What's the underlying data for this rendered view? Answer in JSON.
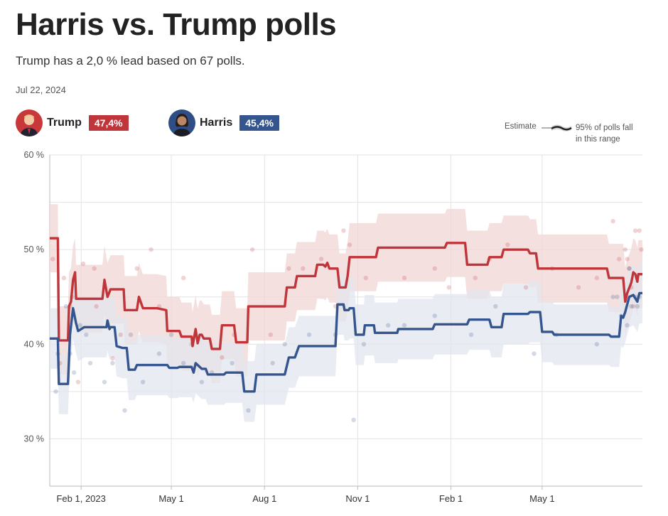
{
  "header": {
    "title": "Harris vs. Trump polls",
    "subtitle": "Trump has a 2,0 % lead based on 67 polls.",
    "date": "Jul 22, 2024"
  },
  "candidates": [
    {
      "name": "Trump",
      "value_label": "47,4%",
      "color": "#c0353a"
    },
    {
      "name": "Harris",
      "value_label": "45,4%",
      "color": "#34558e"
    }
  ],
  "legend": {
    "estimate": "Estimate",
    "range_line1": "95% of polls fall",
    "range_line2": "in this range"
  },
  "chart_data": {
    "type": "line",
    "title": "Harris vs. Trump polls",
    "x_start": "2023-01-01",
    "x_end": "2024-07-22",
    "x_tick_labels": [
      "Feb 1, 2023",
      "May 1",
      "Aug 1",
      "Nov 1",
      "Feb 1",
      "May 1"
    ],
    "x_tick_days": [
      31,
      120,
      212,
      304,
      396,
      486
    ],
    "y_tick_labels": [
      "60 %",
      "50 %",
      "40 %",
      "30 %"
    ],
    "y_ticks": [
      60,
      50,
      40,
      30
    ],
    "ylim": [
      25,
      60
    ],
    "series": [
      {
        "name": "Trump",
        "color": "#c0353a",
        "band_color": "#f2d6d6",
        "estimate": [
          [
            0,
            51.2
          ],
          [
            8,
            51.2
          ],
          [
            9,
            40.4
          ],
          [
            18,
            40.4
          ],
          [
            19,
            44
          ],
          [
            21,
            44.5
          ],
          [
            23,
            46.8
          ],
          [
            25,
            47.6
          ],
          [
            26,
            44.8
          ],
          [
            30,
            44.8
          ],
          [
            32,
            44.8
          ],
          [
            52,
            44.8
          ],
          [
            54,
            46.8
          ],
          [
            57,
            45
          ],
          [
            60,
            45.8
          ],
          [
            73,
            45.8
          ],
          [
            74,
            43.6
          ],
          [
            86,
            43.6
          ],
          [
            88,
            45
          ],
          [
            92,
            43.8
          ],
          [
            106,
            43.8
          ],
          [
            115,
            43.6
          ],
          [
            116,
            41.4
          ],
          [
            128,
            41.4
          ],
          [
            130,
            40.8
          ],
          [
            140,
            40.8
          ],
          [
            141,
            39.8
          ],
          [
            144,
            41.6
          ],
          [
            146,
            40.1
          ],
          [
            148,
            41
          ],
          [
            150,
            41
          ],
          [
            152,
            40.6
          ],
          [
            158,
            40.6
          ],
          [
            160,
            39.5
          ],
          [
            168,
            39.5
          ],
          [
            170,
            42
          ],
          [
            182,
            42
          ],
          [
            184,
            40.2
          ],
          [
            195,
            40.2
          ],
          [
            196,
            44
          ],
          [
            232,
            44
          ],
          [
            234,
            46
          ],
          [
            242,
            46
          ],
          [
            244,
            47.2
          ],
          [
            262,
            47.2
          ],
          [
            264,
            48.4
          ],
          [
            270,
            48.4
          ],
          [
            272,
            48.2
          ],
          [
            274,
            48.6
          ],
          [
            276,
            48
          ],
          [
            284,
            48
          ],
          [
            286,
            46
          ],
          [
            292,
            46
          ],
          [
            294,
            47.2
          ],
          [
            296,
            49.2
          ],
          [
            322,
            49.2
          ],
          [
            324,
            50.2
          ],
          [
            390,
            50.2
          ],
          [
            392,
            50.7
          ],
          [
            410,
            50.7
          ],
          [
            412,
            48.4
          ],
          [
            432,
            48.4
          ],
          [
            434,
            49.2
          ],
          [
            446,
            49.2
          ],
          [
            448,
            50
          ],
          [
            472,
            50
          ],
          [
            474,
            49.6
          ],
          [
            480,
            49.6
          ],
          [
            482,
            48
          ],
          [
            550,
            48
          ],
          [
            552,
            47
          ],
          [
            566,
            47
          ],
          [
            568,
            44.5
          ],
          [
            570,
            45.4
          ],
          [
            574,
            46.5
          ],
          [
            576,
            47.6
          ],
          [
            578,
            47.4
          ],
          [
            580,
            46.6
          ],
          [
            581,
            47.4
          ],
          [
            585,
            47.4
          ]
        ],
        "band_half_width": 3.6,
        "poll_dots": [
          [
            3,
            49
          ],
          [
            10,
            38
          ],
          [
            14,
            47
          ],
          [
            20,
            44
          ],
          [
            22,
            45
          ],
          [
            28,
            36
          ],
          [
            33,
            48.5
          ],
          [
            44,
            48
          ],
          [
            46,
            44
          ],
          [
            62,
            38.5
          ],
          [
            70,
            41
          ],
          [
            86,
            48
          ],
          [
            100,
            50
          ],
          [
            108,
            44
          ],
          [
            132,
            47
          ],
          [
            140,
            40
          ],
          [
            170,
            38.6
          ],
          [
            182,
            41
          ],
          [
            200,
            50
          ],
          [
            218,
            41
          ],
          [
            236,
            48
          ],
          [
            250,
            48
          ],
          [
            268,
            49
          ],
          [
            282,
            44
          ],
          [
            290,
            52
          ],
          [
            296,
            50.5
          ],
          [
            312,
            47
          ],
          [
            350,
            47
          ],
          [
            380,
            48
          ],
          [
            394,
            46
          ],
          [
            420,
            47
          ],
          [
            434,
            49
          ],
          [
            452,
            50.5
          ],
          [
            470,
            46
          ],
          [
            496,
            48
          ],
          [
            522,
            46
          ],
          [
            540,
            47
          ],
          [
            556,
            53
          ],
          [
            562,
            49
          ],
          [
            568,
            50
          ],
          [
            570,
            49
          ],
          [
            572,
            48
          ],
          [
            574,
            46
          ],
          [
            576,
            44
          ],
          [
            578,
            52
          ],
          [
            582,
            52
          ],
          [
            584,
            50
          ]
        ]
      },
      {
        "name": "Harris",
        "color": "#34558e",
        "band_color": "#e1e6ee",
        "estimate": [
          [
            0,
            40.6
          ],
          [
            8,
            40.6
          ],
          [
            9,
            35.8
          ],
          [
            18,
            35.8
          ],
          [
            20,
            41
          ],
          [
            23,
            43.8
          ],
          [
            26,
            42.2
          ],
          [
            28,
            41.4
          ],
          [
            34,
            41.8
          ],
          [
            56,
            41.8
          ],
          [
            57,
            42.5
          ],
          [
            59,
            41.6
          ],
          [
            60,
            41.8
          ],
          [
            64,
            41.8
          ],
          [
            66,
            39.8
          ],
          [
            72,
            39.6
          ],
          [
            76,
            39.6
          ],
          [
            78,
            37.3
          ],
          [
            84,
            37.3
          ],
          [
            86,
            37.8
          ],
          [
            116,
            37.8
          ],
          [
            118,
            37.5
          ],
          [
            126,
            37.5
          ],
          [
            128,
            37.6
          ],
          [
            140,
            37.6
          ],
          [
            142,
            37
          ],
          [
            144,
            38
          ],
          [
            150,
            37.4
          ],
          [
            154,
            37.4
          ],
          [
            156,
            36.8
          ],
          [
            172,
            36.8
          ],
          [
            174,
            37
          ],
          [
            190,
            37
          ],
          [
            192,
            35
          ],
          [
            202,
            35
          ],
          [
            204,
            36.8
          ],
          [
            232,
            36.8
          ],
          [
            236,
            38.6
          ],
          [
            242,
            38.6
          ],
          [
            246,
            39.8
          ],
          [
            282,
            39.8
          ],
          [
            284,
            44.2
          ],
          [
            290,
            44.2
          ],
          [
            291,
            43.6
          ],
          [
            295,
            43.6
          ],
          [
            296,
            43.8
          ],
          [
            300,
            43.8
          ],
          [
            302,
            41
          ],
          [
            310,
            41
          ],
          [
            311,
            42
          ],
          [
            320,
            42
          ],
          [
            321,
            41.2
          ],
          [
            343,
            41.2
          ],
          [
            344,
            41.6
          ],
          [
            378,
            41.6
          ],
          [
            380,
            42.1
          ],
          [
            412,
            42.1
          ],
          [
            414,
            42.6
          ],
          [
            434,
            42.6
          ],
          [
            436,
            41.8
          ],
          [
            446,
            41.8
          ],
          [
            448,
            43.2
          ],
          [
            472,
            43.2
          ],
          [
            474,
            43.4
          ],
          [
            484,
            43.4
          ],
          [
            486,
            41.3
          ],
          [
            496,
            41.3
          ],
          [
            498,
            41
          ],
          [
            520,
            41
          ],
          [
            522,
            41
          ],
          [
            552,
            41
          ],
          [
            554,
            40.8
          ],
          [
            562,
            40.8
          ],
          [
            564,
            43
          ],
          [
            566,
            42.8
          ],
          [
            568,
            43.4
          ],
          [
            572,
            45
          ],
          [
            576,
            45.2
          ],
          [
            580,
            44.5
          ],
          [
            582,
            45.4
          ],
          [
            585,
            45.4
          ]
        ],
        "band_half_width": 3.2,
        "poll_dots": [
          [
            6,
            35
          ],
          [
            8,
            39
          ],
          [
            16,
            44
          ],
          [
            20,
            39
          ],
          [
            24,
            37
          ],
          [
            30,
            42
          ],
          [
            36,
            41
          ],
          [
            40,
            38
          ],
          [
            54,
            36
          ],
          [
            62,
            38
          ],
          [
            74,
            33
          ],
          [
            80,
            41
          ],
          [
            92,
            36
          ],
          [
            108,
            39
          ],
          [
            120,
            41
          ],
          [
            132,
            38
          ],
          [
            150,
            36
          ],
          [
            160,
            37
          ],
          [
            180,
            38
          ],
          [
            196,
            33
          ],
          [
            220,
            38
          ],
          [
            232,
            40
          ],
          [
            256,
            41
          ],
          [
            282,
            41
          ],
          [
            300,
            32
          ],
          [
            310,
            40
          ],
          [
            334,
            42
          ],
          [
            350,
            42
          ],
          [
            380,
            43
          ],
          [
            416,
            41
          ],
          [
            440,
            44
          ],
          [
            478,
            39
          ],
          [
            500,
            41
          ],
          [
            540,
            40
          ],
          [
            556,
            45
          ],
          [
            560,
            45
          ],
          [
            564,
            43
          ],
          [
            570,
            42
          ],
          [
            572,
            48
          ],
          [
            574,
            44
          ],
          [
            578,
            45
          ],
          [
            580,
            44
          ],
          [
            582,
            45
          ]
        ]
      }
    ]
  }
}
